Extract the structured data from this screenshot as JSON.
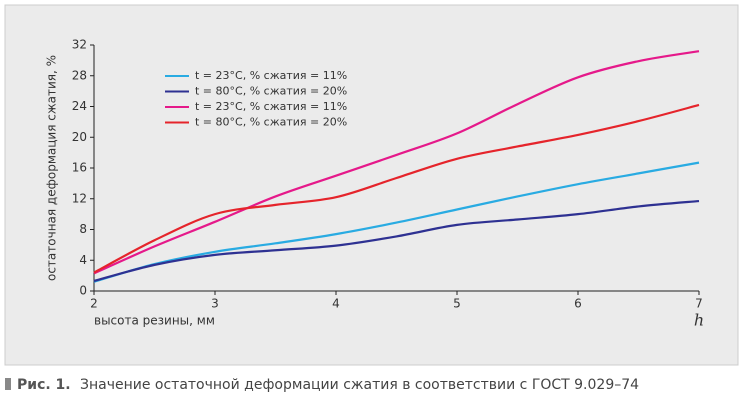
{
  "chart_data": {
    "type": "line",
    "x_label": "высота резины, мм",
    "x_symbol": "h",
    "y_label": "остаточная деформация сжатия, %",
    "caption_label": "Рис. 1.",
    "caption": "Значение остаточной деформации сжатия в соответствии с ГОСТ 9.029–74",
    "x": [
      2,
      2.5,
      3,
      3.5,
      4,
      4.5,
      5,
      5.5,
      6,
      6.5,
      7
    ],
    "xlim": [
      2,
      7
    ],
    "xticks": [
      2,
      3,
      4,
      5,
      6,
      7
    ],
    "ylim": [
      0,
      32
    ],
    "yticks": [
      0,
      4,
      8,
      12,
      16,
      20,
      24,
      28,
      32
    ],
    "grid": false,
    "legend": "upper left",
    "series": [
      {
        "name": "t = 23°C, % сжатия = 11%",
        "color": "#29abe2",
        "values": [
          1.2,
          3.5,
          5.1,
          6.2,
          7.4,
          8.9,
          10.6,
          12.3,
          13.9,
          15.3,
          16.7
        ]
      },
      {
        "name": "t = 80°C, % сжатия = 20%",
        "color": "#2e3192",
        "values": [
          1.3,
          3.4,
          4.7,
          5.3,
          5.9,
          7.1,
          8.6,
          9.3,
          10.0,
          11.0,
          11.7
        ]
      },
      {
        "name": "t = 23°C, % сжатия = 11%",
        "color": "#e5198a",
        "values": [
          2.3,
          5.8,
          9.0,
          12.3,
          15.0,
          17.7,
          20.5,
          24.3,
          27.8,
          29.9,
          31.2
        ]
      },
      {
        "name": "t = 80°C, % сжатия = 20%",
        "color": "#e5242b",
        "values": [
          2.4,
          6.6,
          10.0,
          11.2,
          12.2,
          14.7,
          17.2,
          18.8,
          20.3,
          22.1,
          24.2
        ]
      }
    ]
  }
}
